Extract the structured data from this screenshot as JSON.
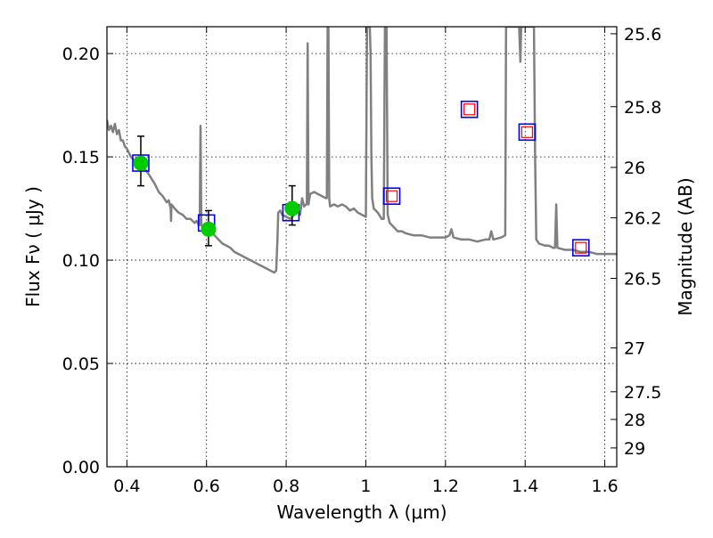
{
  "chart_data": {
    "type": "scatter",
    "xlabel": "Wavelength  λ (μm)",
    "ylabel": "Flux  Fν  ( μJy )",
    "y2label": "Magnitude (AB)",
    "xlim": [
      0.35,
      1.63
    ],
    "ylim": [
      0.0,
      0.213
    ],
    "grid": true,
    "xticks": [
      {
        "value": 0.4,
        "label": "0.4"
      },
      {
        "value": 0.6,
        "label": "0.6"
      },
      {
        "value": 0.8,
        "label": "0.8"
      },
      {
        "value": 1.0,
        "label": "1"
      },
      {
        "value": 1.2,
        "label": "1.2"
      },
      {
        "value": 1.4,
        "label": "1.4"
      },
      {
        "value": 1.6,
        "label": "1.6"
      }
    ],
    "yticks": [
      {
        "value": 0.0,
        "label": "0.00"
      },
      {
        "value": 0.05,
        "label": "0.05"
      },
      {
        "value": 0.1,
        "label": "0.10"
      },
      {
        "value": 0.15,
        "label": "0.15"
      },
      {
        "value": 0.2,
        "label": "0.20"
      }
    ],
    "y2ticks": [
      {
        "flux": 0.2096,
        "label": "25.6"
      },
      {
        "flux": 0.1743,
        "label": "25.8"
      },
      {
        "flux": 0.1449,
        "label": "26"
      },
      {
        "flux": 0.1205,
        "label": "26.2"
      },
      {
        "flux": 0.0912,
        "label": "26.5"
      },
      {
        "flux": 0.0575,
        "label": "27"
      },
      {
        "flux": 0.0363,
        "label": "27.5"
      },
      {
        "flux": 0.0229,
        "label": "28"
      },
      {
        "flux": 0.0091,
        "label": "29"
      }
    ],
    "series": [
      {
        "kind": "line",
        "color": "#808080",
        "points": [
          [
            0.35,
            0.168
          ],
          [
            0.355,
            0.163
          ],
          [
            0.36,
            0.165
          ],
          [
            0.365,
            0.162
          ],
          [
            0.37,
            0.166
          ],
          [
            0.375,
            0.161
          ],
          [
            0.38,
            0.163
          ],
          [
            0.385,
            0.158
          ],
          [
            0.39,
            0.158
          ],
          [
            0.395,
            0.155
          ],
          [
            0.4,
            0.154
          ],
          [
            0.41,
            0.15
          ],
          [
            0.42,
            0.148
          ],
          [
            0.425,
            0.145
          ],
          [
            0.43,
            0.149
          ],
          [
            0.44,
            0.145
          ],
          [
            0.45,
            0.143
          ],
          [
            0.46,
            0.14
          ],
          [
            0.47,
            0.137
          ],
          [
            0.48,
            0.133
          ],
          [
            0.49,
            0.131
          ],
          [
            0.5,
            0.128
          ],
          [
            0.505,
            0.129
          ],
          [
            0.51,
            0.125
          ],
          [
            0.511,
            0.119
          ],
          [
            0.512,
            0.127
          ],
          [
            0.52,
            0.125
          ],
          [
            0.53,
            0.123
          ],
          [
            0.54,
            0.122
          ],
          [
            0.55,
            0.12
          ],
          [
            0.56,
            0.12
          ],
          [
            0.57,
            0.118
          ],
          [
            0.575,
            0.119
          ],
          [
            0.58,
            0.117
          ],
          [
            0.583,
            0.117
          ],
          [
            0.585,
            0.165
          ],
          [
            0.587,
            0.117
          ],
          [
            0.59,
            0.116
          ],
          [
            0.6,
            0.115
          ],
          [
            0.61,
            0.114
          ],
          [
            0.62,
            0.112
          ],
          [
            0.63,
            0.11
          ],
          [
            0.64,
            0.108
          ],
          [
            0.65,
            0.107
          ],
          [
            0.66,
            0.106
          ],
          [
            0.67,
            0.104
          ],
          [
            0.68,
            0.103
          ],
          [
            0.69,
            0.102
          ],
          [
            0.7,
            0.101
          ],
          [
            0.71,
            0.1
          ],
          [
            0.72,
            0.099
          ],
          [
            0.73,
            0.098
          ],
          [
            0.74,
            0.097
          ],
          [
            0.75,
            0.096
          ],
          [
            0.76,
            0.095
          ],
          [
            0.77,
            0.094
          ],
          [
            0.775,
            0.095
          ],
          [
            0.778,
            0.11
          ],
          [
            0.78,
            0.123
          ],
          [
            0.785,
            0.124
          ],
          [
            0.79,
            0.122
          ],
          [
            0.8,
            0.121
          ],
          [
            0.81,
            0.12
          ],
          [
            0.82,
            0.122
          ],
          [
            0.83,
            0.124
          ],
          [
            0.835,
            0.122
          ],
          [
            0.84,
            0.13
          ],
          [
            0.845,
            0.126
          ],
          [
            0.85,
            0.127
          ],
          [
            0.852,
            0.127
          ],
          [
            0.854,
            0.205
          ],
          [
            0.856,
            0.127
          ],
          [
            0.86,
            0.132
          ],
          [
            0.87,
            0.133
          ],
          [
            0.88,
            0.132
          ],
          [
            0.89,
            0.131
          ],
          [
            0.9,
            0.13
          ],
          [
            0.902,
            0.13
          ],
          [
            0.904,
            0.213
          ],
          [
            0.906,
            0.213
          ],
          [
            0.908,
            0.13
          ],
          [
            0.91,
            0.126
          ],
          [
            0.92,
            0.127
          ],
          [
            0.93,
            0.126
          ],
          [
            0.94,
            0.127
          ],
          [
            0.95,
            0.126
          ],
          [
            0.96,
            0.124
          ],
          [
            0.97,
            0.125
          ],
          [
            0.98,
            0.123
          ],
          [
            0.99,
            0.122
          ],
          [
            1.0,
            0.121
          ],
          [
            1.003,
            0.213
          ],
          [
            1.006,
            0.213
          ],
          [
            1.01,
            0.213
          ],
          [
            1.012,
            0.2
          ],
          [
            1.014,
            0.15
          ],
          [
            1.016,
            0.13
          ],
          [
            1.02,
            0.125
          ],
          [
            1.03,
            0.123
          ],
          [
            1.04,
            0.12
          ],
          [
            1.045,
            0.12
          ],
          [
            1.048,
            0.213
          ],
          [
            1.052,
            0.213
          ],
          [
            1.055,
            0.122
          ],
          [
            1.06,
            0.118
          ],
          [
            1.07,
            0.116
          ],
          [
            1.08,
            0.114
          ],
          [
            1.09,
            0.114
          ],
          [
            1.1,
            0.113
          ],
          [
            1.12,
            0.112
          ],
          [
            1.14,
            0.112
          ],
          [
            1.16,
            0.111
          ],
          [
            1.18,
            0.111
          ],
          [
            1.2,
            0.111
          ],
          [
            1.21,
            0.112
          ],
          [
            1.215,
            0.115
          ],
          [
            1.22,
            0.111
          ],
          [
            1.24,
            0.11
          ],
          [
            1.26,
            0.11
          ],
          [
            1.28,
            0.109
          ],
          [
            1.3,
            0.11
          ],
          [
            1.31,
            0.11
          ],
          [
            1.315,
            0.114
          ],
          [
            1.32,
            0.11
          ],
          [
            1.34,
            0.111
          ],
          [
            1.35,
            0.112
          ],
          [
            1.352,
            0.213
          ],
          [
            1.356,
            0.213
          ],
          [
            1.358,
            0.213
          ],
          [
            1.36,
            0.213
          ],
          [
            1.37,
            0.213
          ],
          [
            1.375,
            0.213
          ],
          [
            1.38,
            0.213
          ],
          [
            1.385,
            0.213
          ],
          [
            1.388,
            0.196
          ],
          [
            1.39,
            0.213
          ],
          [
            1.405,
            0.213
          ],
          [
            1.408,
            0.213
          ],
          [
            1.41,
            0.213
          ],
          [
            1.415,
            0.213
          ],
          [
            1.42,
            0.213
          ],
          [
            1.422,
            0.213
          ],
          [
            1.425,
            0.15
          ],
          [
            1.428,
            0.11
          ],
          [
            1.435,
            0.108
          ],
          [
            1.45,
            0.107
          ],
          [
            1.46,
            0.107
          ],
          [
            1.47,
            0.106
          ],
          [
            1.475,
            0.106
          ],
          [
            1.478,
            0.127
          ],
          [
            1.481,
            0.106
          ],
          [
            1.5,
            0.105
          ],
          [
            1.52,
            0.105
          ],
          [
            1.54,
            0.104
          ],
          [
            1.56,
            0.104
          ],
          [
            1.58,
            0.103
          ],
          [
            1.6,
            0.103
          ],
          [
            1.63,
            0.103
          ]
        ]
      },
      {
        "kind": "model_boxes",
        "edgecolor": "#0000ff",
        "points": [
          [
            0.435,
            0.147
          ],
          [
            0.6,
            0.118
          ],
          [
            0.812,
            0.123
          ]
        ]
      },
      {
        "kind": "model_boxes_nested",
        "edgecolor": "#0000ff",
        "innercolor": "#ff0000",
        "points": [
          [
            1.065,
            0.131
          ],
          [
            1.26,
            0.173
          ],
          [
            1.405,
            0.162
          ],
          [
            1.54,
            0.106
          ]
        ]
      },
      {
        "kind": "observed",
        "color": "#00cc00",
        "points": [
          {
            "x": 0.435,
            "y": 0.147,
            "yerr_low": 0.136,
            "yerr_high": 0.16
          },
          {
            "x": 0.605,
            "y": 0.115,
            "yerr_low": 0.107,
            "yerr_high": 0.124
          },
          {
            "x": 0.815,
            "y": 0.125,
            "yerr_low": 0.117,
            "yerr_high": 0.136
          }
        ]
      }
    ]
  }
}
